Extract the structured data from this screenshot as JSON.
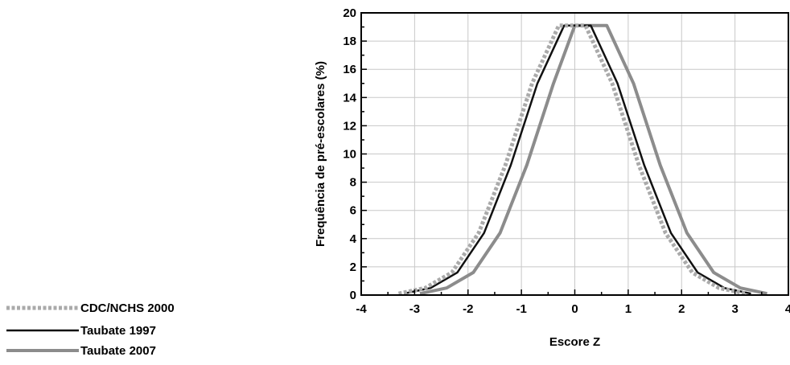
{
  "chart_data": {
    "type": "line",
    "xlabel": "Escore Z",
    "ylabel": "Frequência de pré-escolares (%)",
    "xlim": [
      -4,
      4
    ],
    "ylim": [
      0,
      20
    ],
    "xticks": [
      -4,
      -3,
      -2,
      -1,
      0,
      1,
      2,
      3,
      4
    ],
    "yticks": [
      0,
      2,
      4,
      6,
      8,
      10,
      12,
      14,
      16,
      18,
      20
    ],
    "grid": true,
    "legend_position": "bottom-left",
    "series": [
      {
        "name": "CDC/NCHS 2000",
        "style": "dotted",
        "color": "#aaaaaa",
        "x": [
          -3.3,
          -2.8,
          -2.3,
          -1.8,
          -1.3,
          -0.8,
          -0.3,
          0.2,
          0.7,
          1.2,
          1.7,
          2.2,
          2.7,
          3.2
        ],
        "y": [
          0.1,
          0.5,
          1.6,
          4.4,
          9.2,
          15.0,
          19.1,
          19.1,
          15.0,
          9.2,
          4.4,
          1.6,
          0.5,
          0.1
        ]
      },
      {
        "name": "Taubate 1997",
        "style": "solid",
        "color": "#111111",
        "x": [
          -3.2,
          -2.7,
          -2.2,
          -1.7,
          -1.2,
          -0.7,
          -0.2,
          0.3,
          0.8,
          1.3,
          1.8,
          2.3,
          2.8,
          3.3
        ],
        "y": [
          0.1,
          0.5,
          1.6,
          4.4,
          9.2,
          15.0,
          19.1,
          19.1,
          15.0,
          9.2,
          4.4,
          1.6,
          0.5,
          0.1
        ]
      },
      {
        "name": "Taubate 2007",
        "style": "solid",
        "color": "#8c8c8c",
        "x": [
          -2.9,
          -2.4,
          -1.9,
          -1.4,
          -0.9,
          -0.4,
          0.0,
          0.6,
          1.1,
          1.6,
          2.1,
          2.6,
          3.1,
          3.6
        ],
        "y": [
          0.1,
          0.5,
          1.6,
          4.4,
          9.2,
          15.0,
          19.1,
          19.1,
          15.0,
          9.2,
          4.4,
          1.6,
          0.5,
          0.1
        ]
      }
    ]
  }
}
